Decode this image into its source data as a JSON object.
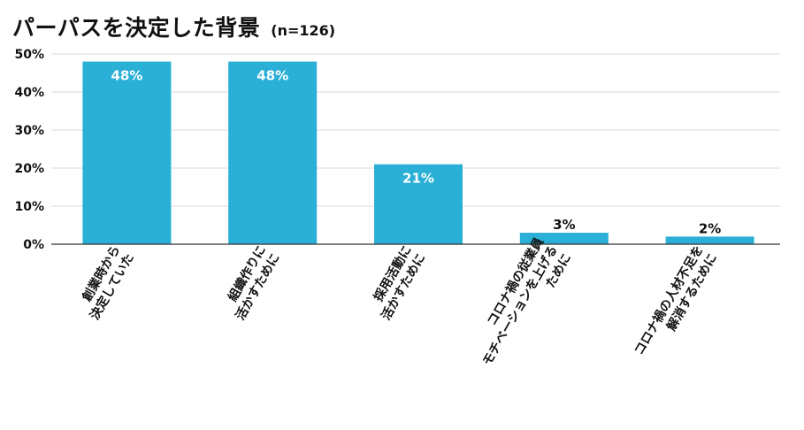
{
  "title": "パーパスを決定した背景",
  "sample": "(n=126)",
  "colors": {
    "bar": "#2aafd6",
    "grid": "#d9d9d9",
    "axis": "#333333",
    "label_inside": "#ffffff",
    "label_outside": "#111111"
  },
  "chart_data": {
    "type": "bar",
    "categories": [
      [
        "創業時から",
        "決定していた"
      ],
      [
        "組織作りに",
        "活かすために"
      ],
      [
        "採用活動に",
        "活かすために"
      ],
      [
        "コロナ禍の従業員",
        "モチベーションを上げる",
        "ために"
      ],
      [
        "コロナ禍の人材不足を",
        "解消するために"
      ]
    ],
    "values": [
      48,
      48,
      21,
      3,
      2
    ],
    "value_labels": [
      "48%",
      "48%",
      "21%",
      "3%",
      "2%"
    ],
    "yticks": [
      "0%",
      "10%",
      "20%",
      "30%",
      "40%",
      "50%"
    ],
    "ylim": [
      0,
      50
    ],
    "grid": true
  }
}
